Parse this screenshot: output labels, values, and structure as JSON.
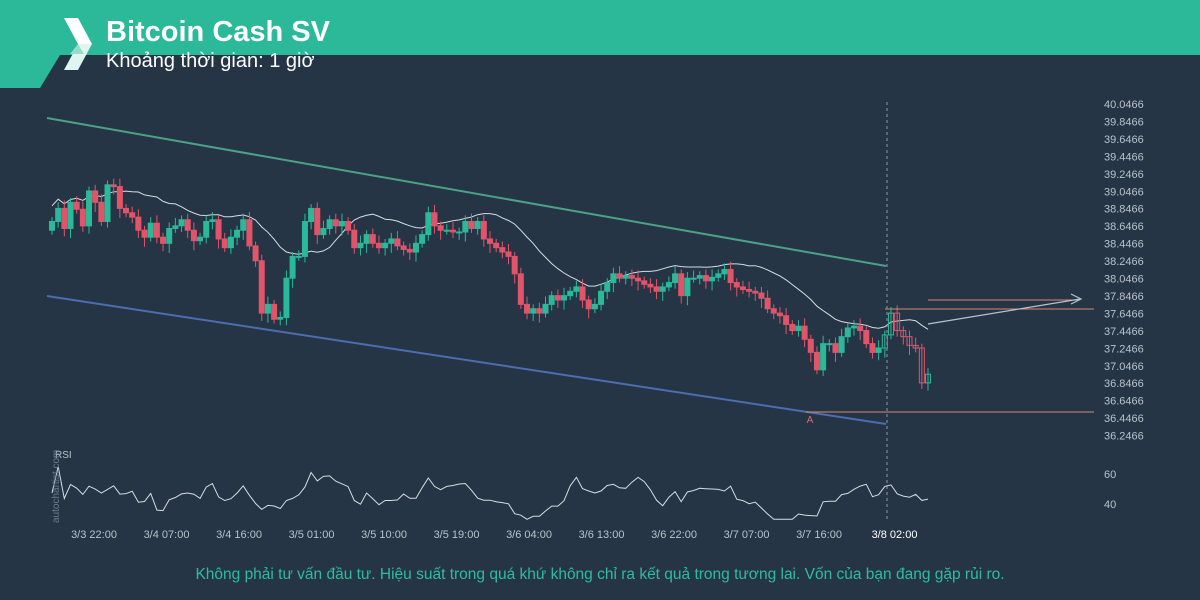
{
  "header": {
    "title": "Bitcoin Cash SV",
    "subtitle": "Khoảng thời gian: 1 giờ",
    "brand_color": "#2bb99a",
    "logo_icon": "autochartist-logo-icon"
  },
  "disclaimer": "Không phải tư vấn đầu tư. Hiệu suất trong quá khứ không chỉ ra kết quả trong tương lai. Vốn của bạn đang gặp rủi ro.",
  "watermark": "autochartist.com",
  "chart_data": {
    "type": "candlestick",
    "timeframe": "1h",
    "x_tick_labels": [
      "3/3 22:00",
      "3/4 07:00",
      "3/4 16:00",
      "3/5 01:00",
      "3/5 10:00",
      "3/5 19:00",
      "3/6 04:00",
      "3/6 13:00",
      "3/6 22:00",
      "3/7 07:00",
      "3/7 16:00",
      "3/8 02:00"
    ],
    "y_ticks": [
      "40.0466",
      "39.8466",
      "39.6466",
      "39.4466",
      "39.2466",
      "39.0466",
      "38.8466",
      "38.6466",
      "38.4466",
      "38.2466",
      "38.0466",
      "37.8466",
      "37.6466",
      "37.4466",
      "37.2466",
      "37.0466",
      "36.8466",
      "36.6466",
      "36.4466",
      "36.2466"
    ],
    "ylim": [
      36.1,
      40.1
    ],
    "closes": [
      38.7,
      38.85,
      38.62,
      38.92,
      38.84,
      38.65,
      39.05,
      38.92,
      38.7,
      39.12,
      39.1,
      38.85,
      38.8,
      38.75,
      38.6,
      38.52,
      38.68,
      38.52,
      38.45,
      38.62,
      38.65,
      38.72,
      38.6,
      38.48,
      38.52,
      38.7,
      38.72,
      38.5,
      38.4,
      38.52,
      38.6,
      38.72,
      38.42,
      38.25,
      37.65,
      37.75,
      37.58,
      37.6,
      38.05,
      38.3,
      38.3,
      38.7,
      38.85,
      38.55,
      38.62,
      38.72,
      38.65,
      38.7,
      38.6,
      38.4,
      38.45,
      38.55,
      38.45,
      38.4,
      38.45,
      38.5,
      38.42,
      38.38,
      38.35,
      38.45,
      38.55,
      38.8,
      38.65,
      38.6,
      38.6,
      38.58,
      38.58,
      38.7,
      38.62,
      38.7,
      38.5,
      38.45,
      38.4,
      38.35,
      38.3,
      38.1,
      37.75,
      37.65,
      37.7,
      37.65,
      37.75,
      37.85,
      37.8,
      37.85,
      37.9,
      37.95,
      37.8,
      37.7,
      37.75,
      37.9,
      38.0,
      38.1,
      38.05,
      38.08,
      38.05,
      38.02,
      37.98,
      37.95,
      37.9,
      37.95,
      38.0,
      38.1,
      37.85,
      38.05,
      38.05,
      38.08,
      38.02,
      38.06,
      38.1,
      38.15,
      38.0,
      37.95,
      37.92,
      37.9,
      37.88,
      37.82,
      37.7,
      37.65,
      37.62,
      37.52,
      37.45,
      37.5,
      37.35,
      37.2,
      37.0,
      37.3,
      37.3,
      37.2,
      37.38,
      37.48,
      37.5,
      37.45,
      37.3,
      37.2,
      37.25,
      37.4,
      37.65,
      37.45,
      37.38,
      37.28,
      37.25,
      36.85,
      36.95
    ],
    "rsi_label": "RSI",
    "rsi_ticks": [
      "60",
      "40"
    ],
    "support_resistance_anchor_label": "A",
    "event_time_label": "3/8 02:00"
  }
}
